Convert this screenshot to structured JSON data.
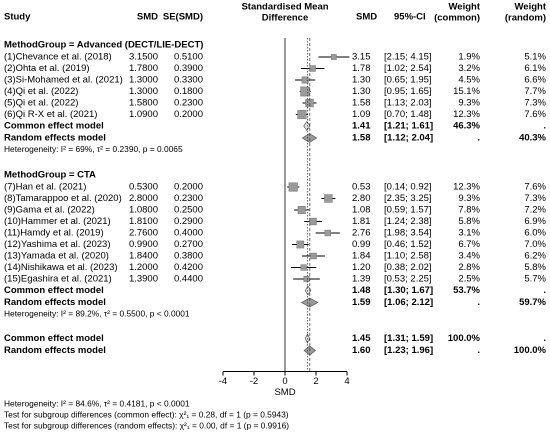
{
  "chart_data": {
    "type": "forest",
    "headers": {
      "study": "Study",
      "smd": "SMD",
      "se": "SE(SMD)",
      "plot": [
        "Standardised Mean",
        "Difference"
      ],
      "est": "SMD",
      "ci": "95%-CI",
      "w_common": [
        "Weight",
        "(common)"
      ],
      "w_random": [
        "Weight",
        "(random)"
      ]
    },
    "groups": [
      {
        "title": "MethodGroup = Advanced (DECT/LIE-DECT)",
        "studies": [
          {
            "name": "(1)Chevance et al. (2018)",
            "smd": {
              "value": 3.15,
              "label": "3.1500"
            },
            "se": {
              "value": 0.51,
              "label": "0.5100"
            },
            "est": 3.15,
            "ci": {
              "lower": 2.15,
              "upper": 4.15,
              "label": "[2.15; 4.15]"
            },
            "w_common": {
              "value": 1.9,
              "label": "1.9%"
            },
            "w_random": {
              "value": 5.1,
              "label": "5.1%"
            }
          },
          {
            "name": "(2)Ohta et al. (2019)",
            "smd": {
              "value": 1.78,
              "label": "1.7800"
            },
            "se": {
              "value": 0.39,
              "label": "0.3900"
            },
            "est": 1.78,
            "ci": {
              "lower": 1.02,
              "upper": 2.54,
              "label": "[1.02; 2.54]"
            },
            "w_common": {
              "value": 3.2,
              "label": "3.2%"
            },
            "w_random": {
              "value": 6.1,
              "label": "6.1%"
            }
          },
          {
            "name": "(3)Si-Mohamed et al. (2021)",
            "smd": {
              "value": 1.3,
              "label": "1.3000"
            },
            "se": {
              "value": 0.33,
              "label": "0.3300"
            },
            "est": {
              "value": 1.3,
              "label": "1.30"
            },
            "ci": {
              "lower": 0.65,
              "upper": 1.95,
              "label": "[0.65; 1.95]"
            },
            "w_common": {
              "value": 4.5,
              "label": "4.5%"
            },
            "w_random": {
              "value": 6.6,
              "label": "6.6%"
            }
          },
          {
            "name": "(4)Qi et al. (2022)",
            "smd": {
              "value": 1.3,
              "label": "1.3000"
            },
            "se": {
              "value": 0.18,
              "label": "0.1800"
            },
            "est": {
              "value": 1.3,
              "label": "1.30"
            },
            "ci": {
              "lower": 0.95,
              "upper": 1.65,
              "label": "[0.95; 1.65]"
            },
            "w_common": {
              "value": 15.1,
              "label": "15.1%"
            },
            "w_random": {
              "value": 7.7,
              "label": "7.7%"
            }
          },
          {
            "name": "(5)Qi et al. (2022)",
            "smd": {
              "value": 1.58,
              "label": "1.5800"
            },
            "se": {
              "value": 0.23,
              "label": "0.2300"
            },
            "est": 1.58,
            "ci": {
              "lower": 1.13,
              "upper": 2.03,
              "label": "[1.13; 2.03]"
            },
            "w_common": {
              "value": 9.3,
              "label": "9.3%"
            },
            "w_random": {
              "value": 7.3,
              "label": "7.3%"
            }
          },
          {
            "name": "(6)Qi R-X et al. (2021)",
            "smd": {
              "value": 1.09,
              "label": "1.0900"
            },
            "se": {
              "value": 0.2,
              "label": "0.2000"
            },
            "est": 1.09,
            "ci": {
              "lower": 0.7,
              "upper": 1.48,
              "label": "[0.70; 1.48]"
            },
            "w_common": {
              "value": 12.3,
              "label": "12.3%"
            },
            "w_random": {
              "value": 7.6,
              "label": "7.6%"
            }
          }
        ],
        "common": {
          "name": "Common effect model",
          "est": 1.41,
          "ci": {
            "lower": 1.21,
            "upper": 1.61,
            "label": "[1.21; 1.61]"
          },
          "w_common": {
            "value": 46.3,
            "label": "46.3%"
          },
          "w_random": "."
        },
        "random": {
          "name": "Random effects model",
          "est": 1.58,
          "ci": {
            "lower": 1.12,
            "upper": 2.04,
            "label": "[1.12; 2.04]"
          },
          "w_common": ".",
          "w_random": {
            "value": 40.3,
            "label": "40.3%"
          }
        },
        "heterogeneity": "Heterogeneity: I² = 69%, τ² = 0.2390, p = 0.0065"
      },
      {
        "title": "MethodGroup = CTA",
        "studies": [
          {
            "name": "(7)Han et al. (2021)",
            "smd": {
              "value": 0.53,
              "label": "0.5300"
            },
            "se": {
              "value": 0.2,
              "label": "0.2000"
            },
            "est": 0.53,
            "ci": {
              "lower": 0.14,
              "upper": 0.92,
              "label": "[0.14; 0.92]"
            },
            "w_common": {
              "value": 12.3,
              "label": "12.3%"
            },
            "w_random": {
              "value": 7.6,
              "label": "7.6%"
            }
          },
          {
            "name": "(8)Tamarappoo et al. (2020)",
            "smd": {
              "value": 2.8,
              "label": "2.8000"
            },
            "se": {
              "value": 0.23,
              "label": "0.2300"
            },
            "est": {
              "value": 2.8,
              "label": "2.80"
            },
            "ci": {
              "lower": 2.35,
              "upper": 3.25,
              "label": "[2.35; 3.25]"
            },
            "w_common": {
              "value": 9.3,
              "label": "9.3%"
            },
            "w_random": {
              "value": 7.3,
              "label": "7.3%"
            }
          },
          {
            "name": "(9)Gama et al. (2022)",
            "smd": {
              "value": 1.08,
              "label": "1.0800"
            },
            "se": {
              "value": 0.25,
              "label": "0.2500"
            },
            "est": 1.08,
            "ci": {
              "lower": 0.59,
              "upper": 1.57,
              "label": "[0.59; 1.57]"
            },
            "w_common": {
              "value": 7.8,
              "label": "7.8%"
            },
            "w_random": {
              "value": 7.2,
              "label": "7.2%"
            }
          },
          {
            "name": "(10)Hammer et al. (2021)",
            "smd": {
              "value": 1.81,
              "label": "1.8100"
            },
            "se": {
              "value": 0.29,
              "label": "0.2900"
            },
            "est": 1.81,
            "ci": {
              "lower": 1.24,
              "upper": 2.38,
              "label": "[1.24; 2.38]"
            },
            "w_common": {
              "value": 5.8,
              "label": "5.8%"
            },
            "w_random": {
              "value": 6.9,
              "label": "6.9%"
            }
          },
          {
            "name": "(11)Hamdy et al. (2019)",
            "smd": {
              "value": 2.76,
              "label": "2.7600"
            },
            "se": {
              "value": 0.4,
              "label": "0.4000"
            },
            "est": 2.76,
            "ci": {
              "lower": 1.98,
              "upper": 3.54,
              "label": "[1.98; 3.54]"
            },
            "w_common": {
              "value": 3.1,
              "label": "3.1%"
            },
            "w_random": {
              "value": 6,
              "label": "6.0%"
            }
          },
          {
            "name": "(12)Yashima et al. (2023)",
            "smd": {
              "value": 0.99,
              "label": "0.9900"
            },
            "se": {
              "value": 0.27,
              "label": "0.2700"
            },
            "est": 0.99,
            "ci": {
              "lower": 0.46,
              "upper": 1.52,
              "label": "[0.46; 1.52]"
            },
            "w_common": {
              "value": 6.7,
              "label": "6.7%"
            },
            "w_random": {
              "value": 7,
              "label": "7.0%"
            }
          },
          {
            "name": "(13)Yamada et al. (2020)",
            "smd": {
              "value": 1.84,
              "label": "1.8400"
            },
            "se": {
              "value": 0.38,
              "label": "0.3800"
            },
            "est": 1.84,
            "ci": {
              "lower": 1.1,
              "upper": 2.58,
              "label": "[1.10; 2.58]"
            },
            "w_common": {
              "value": 3.4,
              "label": "3.4%"
            },
            "w_random": {
              "value": 6.2,
              "label": "6.2%"
            }
          },
          {
            "name": "(14)Nishikawa et al. (2023)",
            "smd": {
              "value": 1.2,
              "label": "1.2000"
            },
            "se": {
              "value": 0.42,
              "label": "0.4200"
            },
            "est": {
              "value": 1.2,
              "label": "1.20"
            },
            "ci": {
              "lower": 0.38,
              "upper": 2.02,
              "label": "[0.38; 2.02]"
            },
            "w_common": {
              "value": 2.8,
              "label": "2.8%"
            },
            "w_random": {
              "value": 5.8,
              "label": "5.8%"
            }
          },
          {
            "name": "(15)Egashira et al. (2021)",
            "smd": {
              "value": 1.39,
              "label": "1.3900"
            },
            "se": {
              "value": 0.44,
              "label": "0.4400"
            },
            "est": 1.39,
            "ci": {
              "lower": 0.53,
              "upper": 2.25,
              "label": "[0.53; 2.25]"
            },
            "w_common": {
              "value": 2.5,
              "label": "2.5%"
            },
            "w_random": {
              "value": 5.7,
              "label": "5.7%"
            }
          }
        ],
        "common": {
          "name": "Common effect model",
          "est": 1.48,
          "ci": {
            "lower": 1.3,
            "upper": 1.67,
            "label": "[1.30; 1.67]"
          },
          "w_common": {
            "value": 53.7,
            "label": "53.7%"
          },
          "w_random": "."
        },
        "random": {
          "name": "Random effects model",
          "est": 1.59,
          "ci": {
            "lower": 1.06,
            "upper": 2.12,
            "label": "[1.06; 2.12]"
          },
          "w_common": ".",
          "w_random": {
            "value": 59.7,
            "label": "59.7%"
          }
        },
        "heterogeneity": "Heterogeneity: I² = 89.2%, τ² = 0.5500, p < 0.0001"
      }
    ],
    "overall": {
      "common": {
        "name": "Common effect model",
        "est": 1.45,
        "ci": {
          "lower": 1.31,
          "upper": 1.59,
          "label": "[1.31; 1.59]"
        },
        "w_common": {
          "value": 100,
          "label": "100.0%"
        },
        "w_random": "."
      },
      "random": {
        "name": "Random effects model",
        "est": {
          "value": 1.6,
          "label": "1.60"
        },
        "ci": {
          "lower": 1.23,
          "upper": 1.96,
          "label": "[1.23; 1.96]"
        },
        "w_common": ".",
        "w_random": {
          "value": 100,
          "label": "100.0%"
        }
      }
    },
    "xlim": [
      -4,
      4
    ],
    "xticks": [
      -4,
      -2,
      0,
      2,
      4
    ],
    "xlabel": "SMD",
    "footer": [
      "Heterogeneity: I² = 84.6%, τ² = 0.4181, p < 0.0001",
      "Test for subgroup differences (common effect): χ²₁ = 0.28, df = 1 (p = 0.5943)",
      "Test for subgroup differences (random effects): χ²₁ = 0.00, df = 1 (p = 0.9916)"
    ]
  }
}
